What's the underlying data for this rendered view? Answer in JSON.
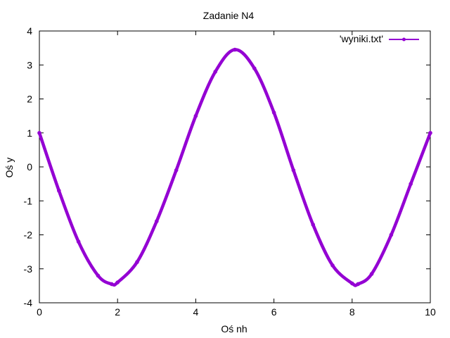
{
  "chart_data": {
    "type": "line",
    "title": "Zadanie N4",
    "xlabel": "Oś nh",
    "ylabel": "Oś y",
    "xlim": [
      0,
      10
    ],
    "ylim": [
      -4,
      4
    ],
    "xticks": [
      "0",
      "2",
      "4",
      "6",
      "8",
      "10"
    ],
    "yticks": [
      "-4",
      "-3",
      "-2",
      "-1",
      "0",
      "1",
      "2",
      "3",
      "4"
    ],
    "grid": false,
    "legend_position": "top-right",
    "series": [
      {
        "name": "'wyniki.txt'",
        "color": "#9400d3",
        "style": "linespoints",
        "x": [
          0,
          0.5,
          1.0,
          1.5,
          1.85,
          2.0,
          2.5,
          3.0,
          3.5,
          4.0,
          4.5,
          5.0,
          5.5,
          6.0,
          6.5,
          7.0,
          7.5,
          8.0,
          8.15,
          8.5,
          9.0,
          9.5,
          10.0
        ],
        "y": [
          1.0,
          -0.7,
          -2.2,
          -3.2,
          -3.45,
          -3.4,
          -2.8,
          -1.6,
          -0.1,
          1.5,
          2.8,
          3.45,
          2.9,
          1.6,
          -0.1,
          -1.7,
          -2.9,
          -3.43,
          -3.45,
          -3.15,
          -2.0,
          -0.5,
          1.0
        ]
      }
    ]
  }
}
